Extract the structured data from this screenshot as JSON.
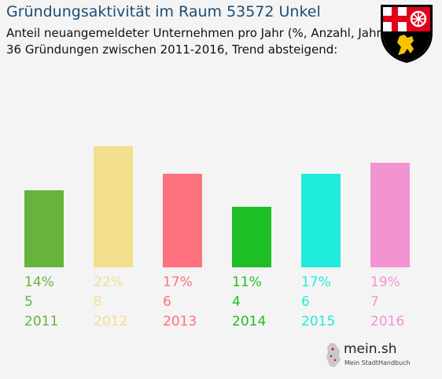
{
  "header": {
    "title": "Gründungsaktivität im Raum 53572 Unkel",
    "subtitle_line1": "Anteil neuangemeldeter Unternehmen pro Jahr (%, Anzahl, Jahr)",
    "subtitle_line2": "36 Gründungen zwischen 2011-2016, Trend absteigend:"
  },
  "crest": {
    "icon": "rhineland-palatinate-coat-of-arms"
  },
  "logo": {
    "name": "mein.sh",
    "tagline": "Mein StadtHandbuch"
  },
  "chart_data": {
    "type": "bar",
    "title": "Gründungsaktivität im Raum 53572 Unkel",
    "categories": [
      "2011",
      "2012",
      "2013",
      "2014",
      "2015",
      "2016"
    ],
    "series": [
      {
        "values": [
          14,
          22,
          17,
          11,
          17,
          19
        ]
      }
    ],
    "counts": [
      5,
      8,
      6,
      4,
      6,
      7
    ],
    "percent_labels": [
      "14%",
      "22%",
      "17%",
      "11%",
      "17%",
      "19%"
    ],
    "count_labels": [
      "5",
      "8",
      "6",
      "4",
      "6",
      "7"
    ],
    "colors": [
      "#66b43c",
      "#f2df8b",
      "#fe717e",
      "#1ebe25",
      "#20ecdb",
      "#f294d1"
    ],
    "ylim": [
      0,
      22
    ],
    "grid": false,
    "legend": "none"
  }
}
